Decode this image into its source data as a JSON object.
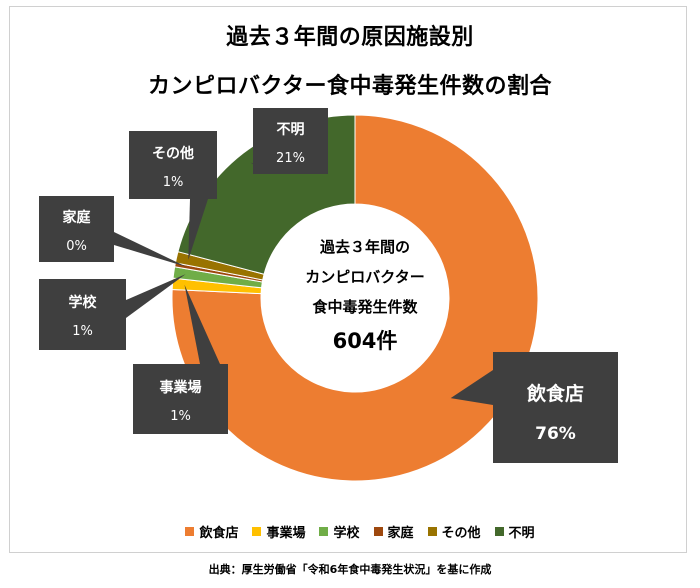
{
  "title_line1": "過去３年間の原因施設別",
  "title_line2": "カンピロバクター食中毒発生件数の割合",
  "center_text": {
    "line1": "過去３年間の",
    "line2": "カンピロバクター",
    "line3": "食中毒発生件数",
    "total": "604件"
  },
  "source": "出典：厚生労働省「令和6年食中毒発生状況」を基に作成",
  "chart_data": {
    "type": "pie",
    "donut": true,
    "title": "過去３年間の原因施設別 カンピロバクター食中毒発生件数の割合",
    "total": 604,
    "unit": "件",
    "legend_position": "bottom",
    "slices": [
      {
        "label": "飲食店",
        "value": 76,
        "display": "76%",
        "color": "#ED7D31"
      },
      {
        "label": "事業場",
        "value": 1,
        "display": "1%",
        "color": "#FFC000"
      },
      {
        "label": "学校",
        "value": 1,
        "display": "1%",
        "color": "#70AD47"
      },
      {
        "label": "家庭",
        "value": 0,
        "display": "0%",
        "color": "#9E480E"
      },
      {
        "label": "その他",
        "value": 1,
        "display": "1%",
        "color": "#997300"
      },
      {
        "label": "不明",
        "value": 21,
        "display": "21%",
        "color": "#43682B"
      }
    ]
  }
}
